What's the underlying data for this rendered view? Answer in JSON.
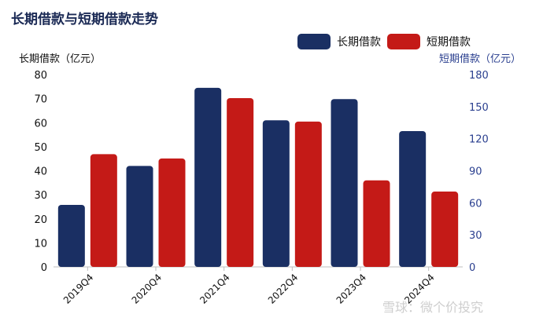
{
  "title": "长期借款与短期借款走势",
  "left_axis_title": "长期借款（亿元）",
  "right_axis_title": "短期借款（亿元）",
  "watermark": "雪球：微个价投究",
  "colors": {
    "long": "#1a2f63",
    "short": "#c41a17",
    "right_axis_text": "#2a3f8f"
  },
  "chart_data": {
    "type": "bar",
    "categories": [
      "2019Q4",
      "2020Q4",
      "2021Q4",
      "2022Q4",
      "2023Q4",
      "2024Q4"
    ],
    "series": [
      {
        "name": "长期借款",
        "axis": "left",
        "values": [
          25.8,
          42,
          74.5,
          61,
          69.8,
          56.5
        ]
      },
      {
        "name": "短期借款",
        "axis": "right",
        "values": [
          105.5,
          101.5,
          158,
          136,
          81,
          70.5
        ]
      }
    ],
    "ylim_left": [
      0,
      80
    ],
    "yticks_left": [
      0,
      10,
      20,
      30,
      40,
      50,
      60,
      70,
      80
    ],
    "ylim_right": [
      0,
      180
    ],
    "yticks_right": [
      0,
      30,
      60,
      90,
      120,
      150,
      180
    ],
    "legend": "top-right",
    "grid": false
  }
}
